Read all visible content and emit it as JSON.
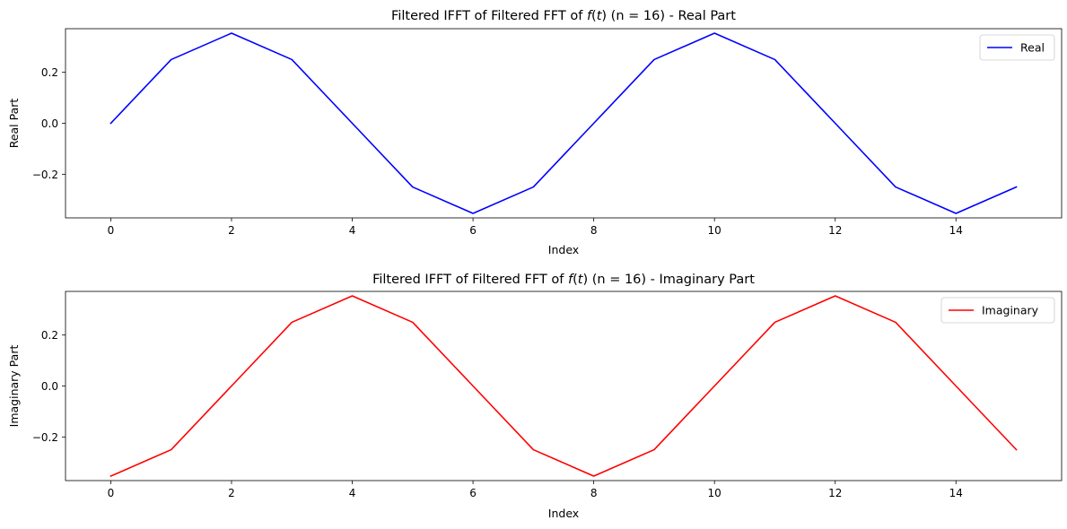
{
  "chart_data": [
    {
      "type": "line",
      "title": "Filtered IFFT of Filtered FFT of f(t) (n = 16) - Real Part",
      "title_parts": {
        "prefix": "Filtered IFFT of Filtered FFT of ",
        "func": "f",
        "open": "(",
        "var": "t",
        "close": ")",
        "suffix": " (n = 16) - Real Part"
      },
      "xlabel": "Index",
      "ylabel": "Real Part",
      "xlim": [
        -0.75,
        15.75
      ],
      "ylim": [
        -0.3712,
        0.3712
      ],
      "xticks": [
        0,
        2,
        4,
        6,
        8,
        10,
        12,
        14
      ],
      "yticks": [
        -0.2,
        0.0,
        0.2
      ],
      "ytick_labels": [
        "−0.2",
        "0.0",
        "0.2"
      ],
      "legend": "top-right",
      "grid": false,
      "series": [
        {
          "name": "Real",
          "color": "#0000ff",
          "x": [
            0,
            1,
            2,
            3,
            4,
            5,
            6,
            7,
            8,
            9,
            10,
            11,
            12,
            13,
            14,
            15
          ],
          "values": [
            0.0,
            0.25,
            0.3536,
            0.25,
            0.0,
            -0.25,
            -0.3536,
            -0.25,
            0.0,
            0.25,
            0.3536,
            0.25,
            0.0,
            -0.25,
            -0.3536,
            -0.25
          ]
        }
      ]
    },
    {
      "type": "line",
      "title": "Filtered IFFT of Filtered FFT of f(t) (n = 16) - Imaginary Part",
      "title_parts": {
        "prefix": "Filtered IFFT of Filtered FFT of ",
        "func": "f",
        "open": "(",
        "var": "t",
        "close": ")",
        "suffix": " (n = 16) - Imaginary Part"
      },
      "xlabel": "Index",
      "ylabel": "Imaginary Part",
      "xlim": [
        -0.75,
        15.75
      ],
      "ylim": [
        -0.3712,
        0.3712
      ],
      "xticks": [
        0,
        2,
        4,
        6,
        8,
        10,
        12,
        14
      ],
      "yticks": [
        -0.2,
        0.0,
        0.2
      ],
      "ytick_labels": [
        "−0.2",
        "0.0",
        "0.2"
      ],
      "legend": "top-right",
      "grid": false,
      "series": [
        {
          "name": "Imaginary",
          "color": "#ff0000",
          "x": [
            0,
            1,
            2,
            3,
            4,
            5,
            6,
            7,
            8,
            9,
            10,
            11,
            12,
            13,
            14,
            15
          ],
          "values": [
            -0.3536,
            -0.25,
            0.0,
            0.25,
            0.3536,
            0.25,
            0.0,
            -0.25,
            -0.3536,
            -0.25,
            0.0,
            0.25,
            0.3536,
            0.25,
            0.0,
            -0.25
          ]
        }
      ]
    }
  ]
}
